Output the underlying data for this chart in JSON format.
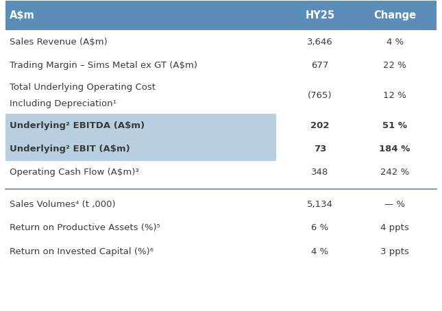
{
  "header_bg": "#5b8db8",
  "header_text_color": "#ffffff",
  "highlight_bg": "#b8cfe0",
  "body_text_color": "#3a3a3a",
  "separator_color": "#5b8db8",
  "col_label": "A$m",
  "col_hy25": "HY25",
  "col_change": "Change",
  "rows": [
    {
      "label": "Sales Revenue (A$m)",
      "label2": "",
      "hy25": "3,646",
      "change": "4 %",
      "highlight": false,
      "bold": false,
      "separator_above": false
    },
    {
      "label": "Trading Margin – Sims Metal ex GT (A$m)",
      "label2": "",
      "hy25": "677",
      "change": "22 %",
      "highlight": false,
      "bold": false,
      "separator_above": false
    },
    {
      "label": "Total Underlying Operating Cost",
      "label2": "Including Depreciation¹",
      "hy25": "(765)",
      "change": "12 %",
      "highlight": false,
      "bold": false,
      "separator_above": false
    },
    {
      "label": "Underlying² EBITDA (A$m)",
      "label2": "",
      "hy25": "202",
      "change": "51 %",
      "highlight": true,
      "bold": true,
      "separator_above": false
    },
    {
      "label": "Underlying² EBIT (A$m)",
      "label2": "",
      "hy25": "73",
      "change": "184 %",
      "highlight": true,
      "bold": true,
      "separator_above": false
    },
    {
      "label": "Operating Cash Flow (A$m)³",
      "label2": "",
      "hy25": "348",
      "change": "242 %",
      "highlight": false,
      "bold": false,
      "separator_above": false
    },
    {
      "label": "Sales Volumes⁴ (t ,000)",
      "label2": "",
      "hy25": "5,134",
      "change": "— %",
      "highlight": false,
      "bold": false,
      "separator_above": true
    },
    {
      "label": "Return on Productive Assets (%)⁵",
      "label2": "",
      "hy25": "6 %",
      "change": "4 ppts",
      "highlight": false,
      "bold": false,
      "separator_above": false
    },
    {
      "label": "Return on Invested Capital (%)⁶",
      "label2": "",
      "hy25": "4 %",
      "change": "3 ppts",
      "highlight": false,
      "bold": false,
      "separator_above": false
    }
  ]
}
